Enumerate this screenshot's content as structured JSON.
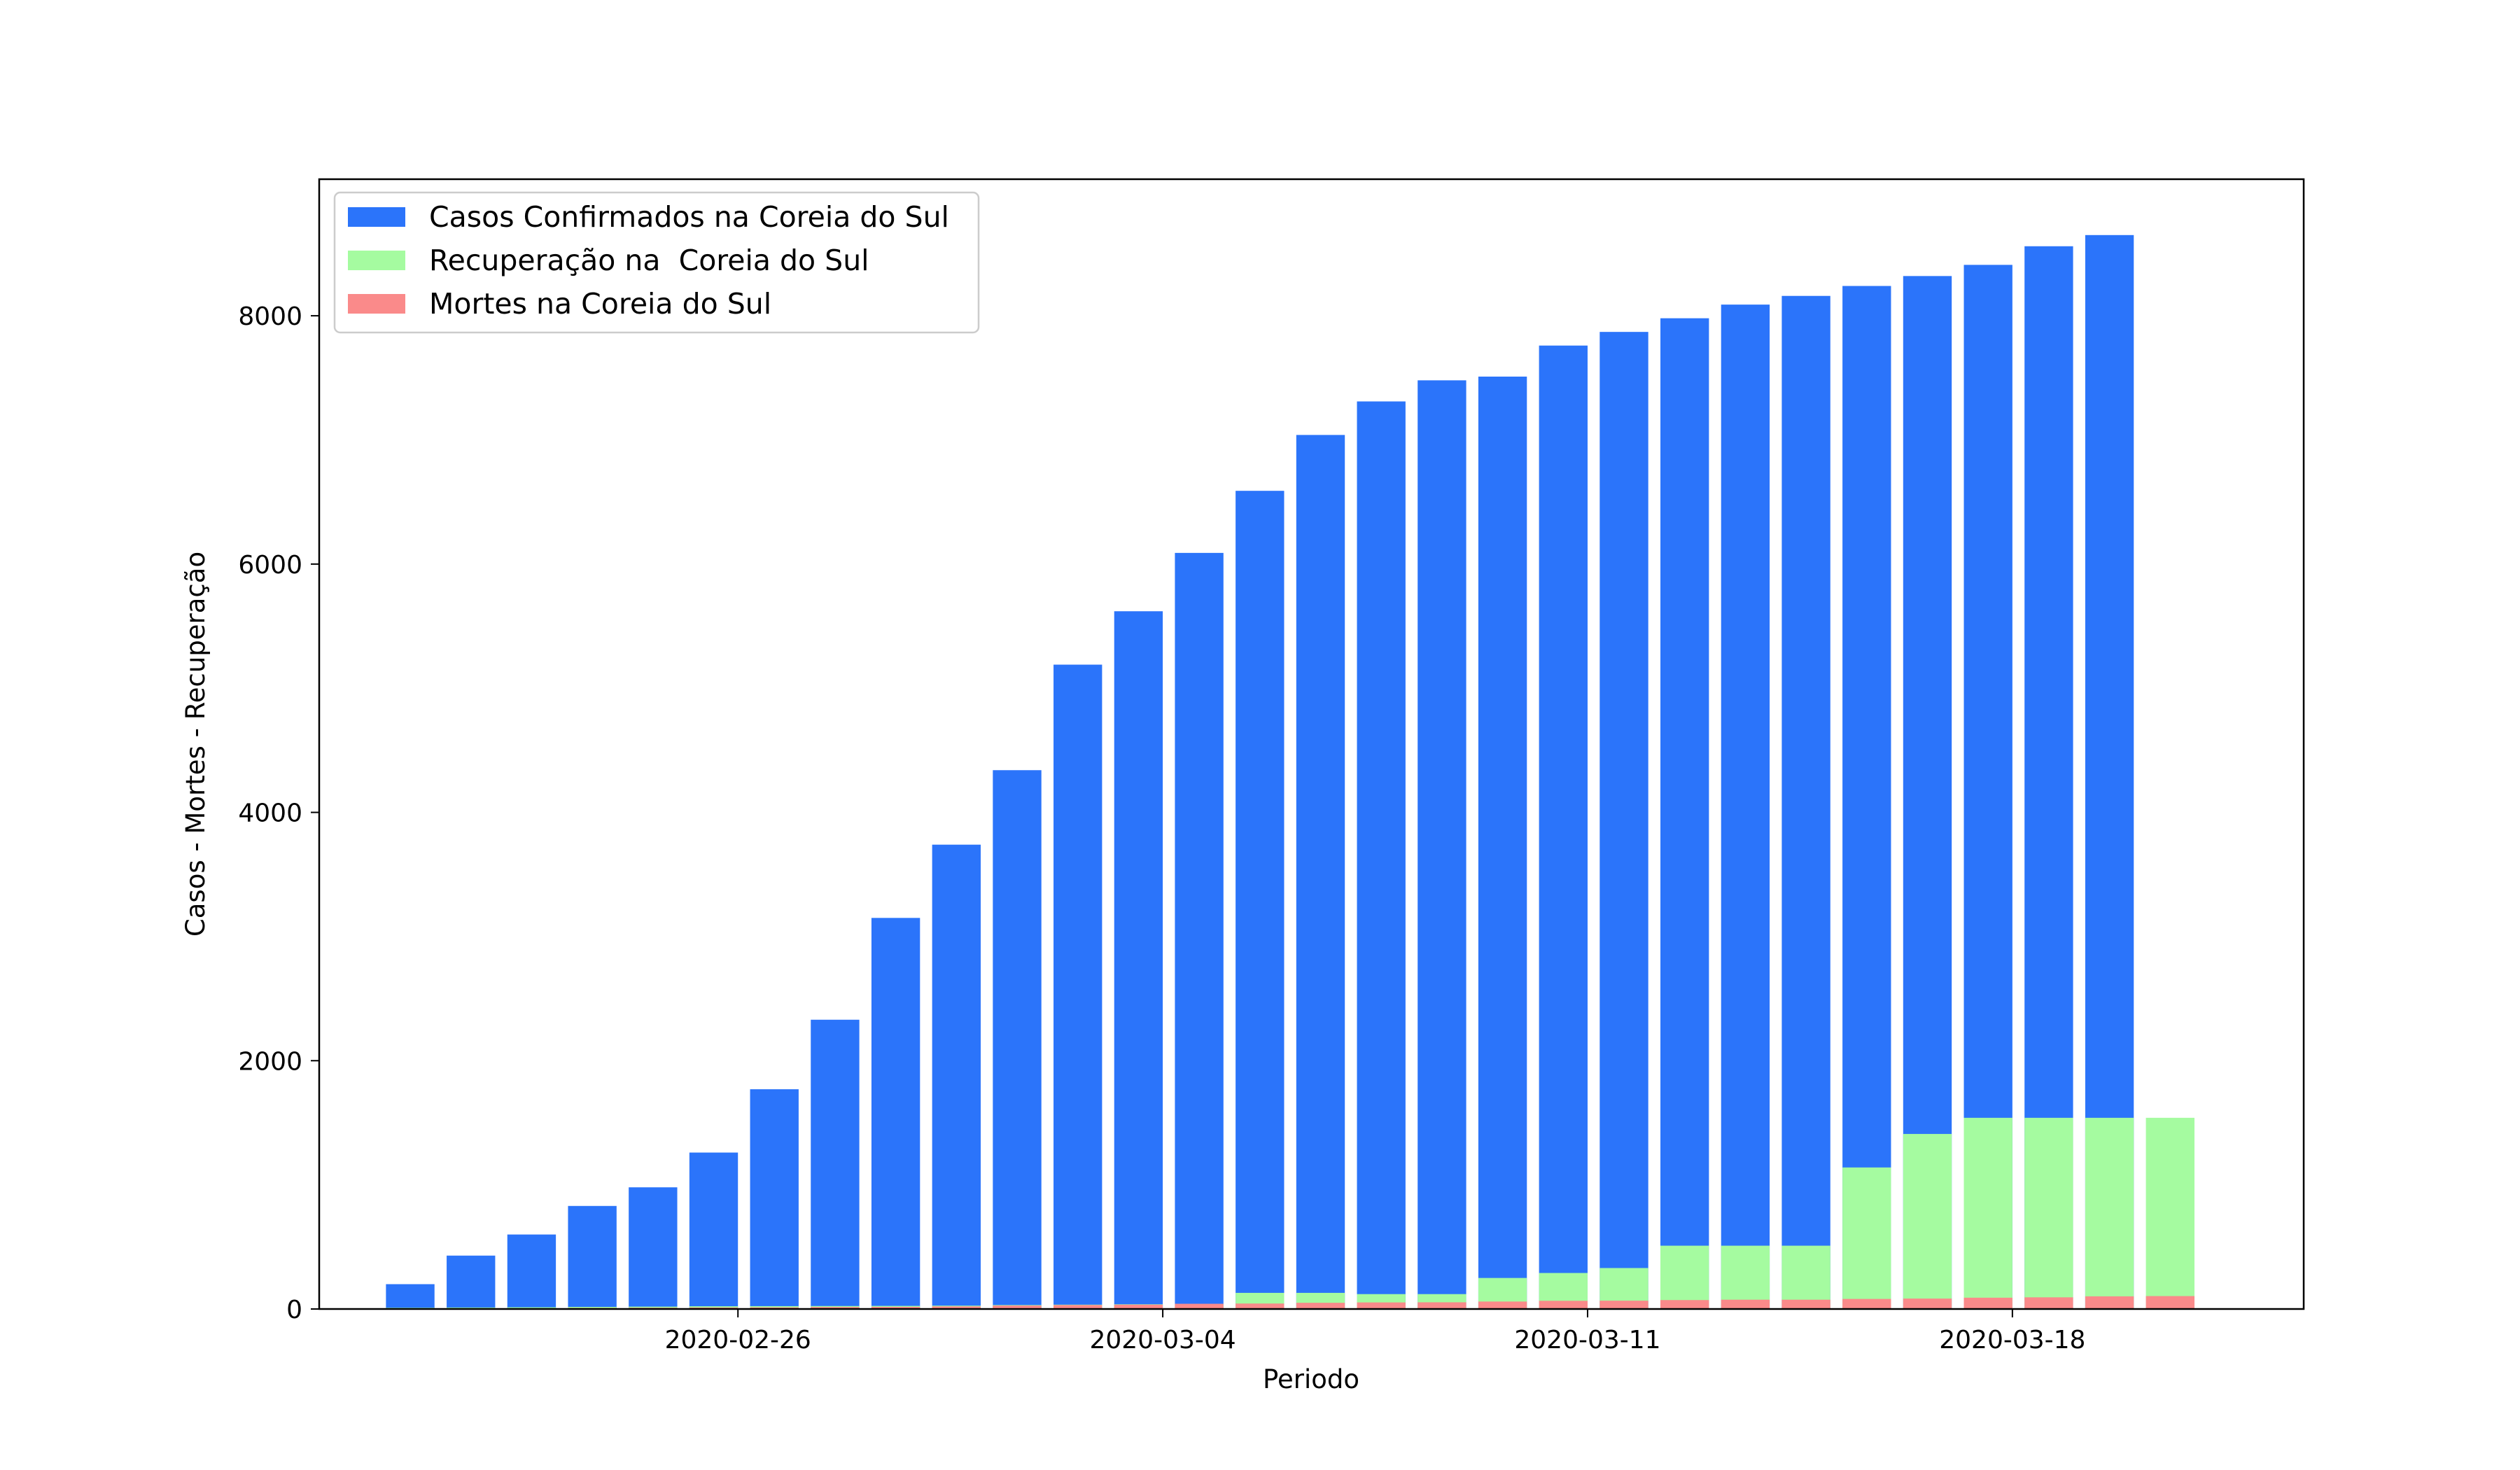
{
  "chart_data": {
    "type": "bar",
    "mode": "overlaid",
    "title": "",
    "xlabel": "Periodo",
    "ylabel": "Casos - Mortes - Recuperação",
    "ylim": [
      0,
      9100
    ],
    "xlim": [
      -1.5,
      31.2
    ],
    "yticks": [
      0,
      2000,
      4000,
      6000,
      8000
    ],
    "ytick_labels": [
      "0",
      "2000",
      "4000",
      "6000",
      "8000"
    ],
    "xticks": [
      {
        "pos": 5.4,
        "label": "2020-02-26"
      },
      {
        "pos": 12.4,
        "label": "2020-03-04"
      },
      {
        "pos": 19.4,
        "label": "2020-03-11"
      },
      {
        "pos": 26.4,
        "label": "2020-03-18"
      }
    ],
    "legend_position": "top-left",
    "series": [
      {
        "name": "Casos Confirmados na Coreia do Sul",
        "color": "#2b74fa",
        "x": [
          0,
          1,
          2,
          3,
          4,
          5,
          6,
          7,
          8,
          9,
          10,
          11,
          12,
          13,
          14,
          15,
          16,
          17,
          18,
          19,
          20,
          21,
          22,
          23,
          24,
          25,
          26,
          27,
          28,
          29
        ],
        "values": [
          200,
          430,
          600,
          830,
          980,
          1260,
          1770,
          2330,
          3150,
          3740,
          4340,
          5190,
          5620,
          6090,
          6590,
          7040,
          7310,
          7480,
          7510,
          7760,
          7870,
          7980,
          8090,
          8160,
          8240,
          8320,
          8410,
          8560,
          8650,
          0
        ]
      },
      {
        "name": "Recuperação na  Coreia do Sul",
        "color": "#a5fba0",
        "x": [
          0,
          1,
          2,
          3,
          4,
          5,
          6,
          7,
          8,
          9,
          10,
          11,
          12,
          13,
          14,
          15,
          16,
          17,
          18,
          19,
          20,
          21,
          22,
          23,
          24,
          25,
          26,
          27,
          28,
          29
        ],
        "values": [
          10,
          12,
          14,
          17,
          19,
          22,
          23,
          24,
          25,
          27,
          32,
          35,
          38,
          40,
          130,
          130,
          120,
          120,
          250,
          290,
          330,
          510,
          510,
          510,
          1140,
          1410,
          1540,
          1540,
          1540,
          1540
        ]
      },
      {
        "name": "Mortes na Coreia do Sul",
        "color": "#fa8a8a",
        "x": [
          0,
          1,
          2,
          3,
          4,
          5,
          6,
          7,
          8,
          9,
          10,
          11,
          12,
          13,
          14,
          15,
          16,
          17,
          18,
          19,
          20,
          21,
          22,
          23,
          24,
          25,
          26,
          27,
          28,
          29
        ],
        "values": [
          2,
          3,
          5,
          8,
          10,
          12,
          13,
          16,
          17,
          21,
          28,
          32,
          35,
          42,
          44,
          50,
          53,
          54,
          60,
          66,
          67,
          72,
          75,
          75,
          81,
          84,
          91,
          94,
          102,
          104
        ]
      }
    ]
  }
}
